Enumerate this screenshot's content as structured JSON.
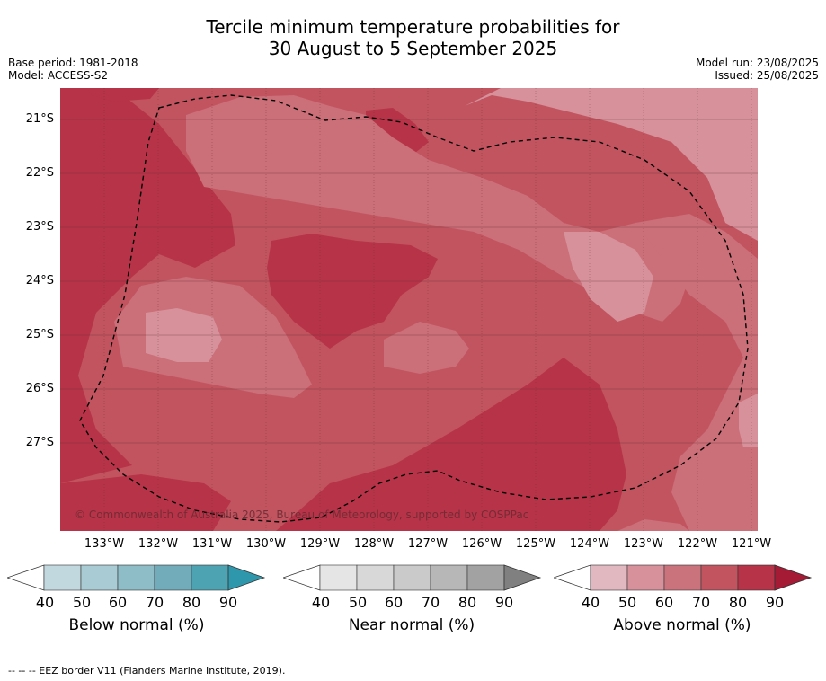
{
  "title_line1": "Tercile minimum temperature probabilities for",
  "title_line2": "30 August to 5 September 2025",
  "meta_left": [
    "Base period: 1981-2018",
    "Model: ACCESS-S2"
  ],
  "meta_right": [
    "Model run: 23/08/2025",
    "Issued: 25/08/2025"
  ],
  "copyright": "© Commonwealth of Australia 2025, Bureau of Meteorology, supported by COSPPac",
  "lat_labels": [
    "21°S",
    "22°S",
    "23°S",
    "24°S",
    "25°S",
    "26°S",
    "27°S"
  ],
  "lon_labels": [
    "133°W",
    "132°W",
    "131°W",
    "130°W",
    "129°W",
    "128°W",
    "127°W",
    "126°W",
    "125°W",
    "124°W",
    "123°W",
    "122°W",
    "121°W"
  ],
  "colorbars": [
    {
      "title": "Below normal (%)",
      "ticks": [
        "40",
        "50",
        "60",
        "70",
        "80",
        "90"
      ],
      "colors": [
        "#c0d8de",
        "#a9cbd3",
        "#8ebcc7",
        "#72acba",
        "#4ea3b2",
        "#2f97ab"
      ]
    },
    {
      "title": "Near normal (%)",
      "ticks": [
        "40",
        "50",
        "60",
        "70",
        "80",
        "90"
      ],
      "colors": [
        "#e5e5e5",
        "#d8d8d8",
        "#cacaca",
        "#b7b7b7",
        "#a2a2a2",
        "#808080"
      ]
    },
    {
      "title": "Above normal (%)",
      "ticks": [
        "40",
        "50",
        "60",
        "70",
        "80",
        "90"
      ],
      "colors": [
        "#e2b8c0",
        "#d6919b",
        "#cb737d",
        "#c1545f",
        "#b73348",
        "#a51a34"
      ]
    }
  ],
  "footer": "-- -- -- EEZ border V11 (Flanders Marine Institute, 2019).",
  "map_colors": {
    "c50": "#d6919b",
    "c60": "#cb6f78",
    "c70": "#c1545f",
    "c80": "#b73348"
  }
}
